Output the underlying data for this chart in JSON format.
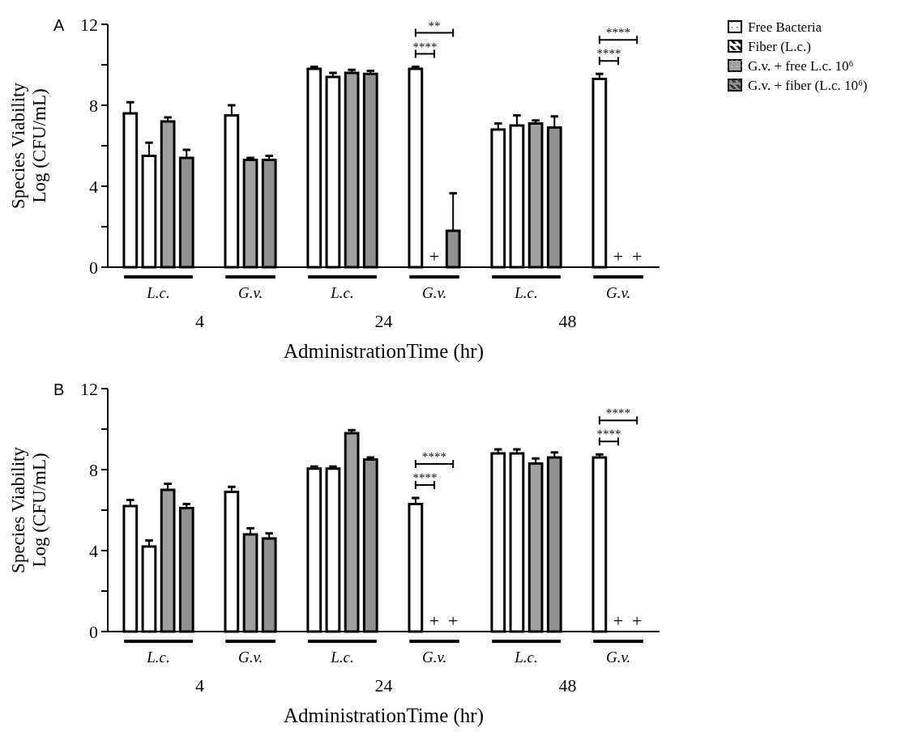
{
  "chart_data": [
    {
      "type": "bar",
      "title": "A",
      "xlabel": "AdministrationTime (hr)",
      "ylabel": "Species Viability\nLog (CFU/mL)",
      "categories": [
        "L.c.",
        "G.v.",
        "L.c.",
        "G.v.",
        "L.c.",
        "G.v."
      ],
      "ylim": [
        0,
        12
      ],
      "yticks": [
        0,
        {
          "value": 2,
          "label": null
        },
        4,
        {
          "value": 6,
          "label": null
        },
        8,
        {
          "value": 10,
          "label": null
        },
        12
      ],
      "legend": "top right",
      "annotations": [
        "4",
        "24",
        "48",
        "****",
        "**",
        "****",
        "****"
      ],
      "series": [
        {
          "name": "Free Bacteria",
          "color": "#ffffff",
          "values": [
            7.6,
            7.5,
            9.8,
            9.8,
            6.8,
            9.3
          ],
          "errors": [
            0.55,
            0.5,
            0.1,
            0.1,
            0.3,
            0.25
          ]
        },
        {
          "name": "Fiber (L.c.)",
          "color": "#ffffff",
          "values": [
            5.5,
            null,
            9.4,
            null,
            7.0,
            null
          ],
          "errors": [
            0.65,
            null,
            0.2,
            null,
            0.5,
            null
          ]
        },
        {
          "name": "G.v. + free L.c. 10⁶",
          "color": "#a0a0a0",
          "values": [
            7.2,
            5.3,
            9.6,
            null,
            7.1,
            null
          ],
          "errors": [
            0.2,
            0.1,
            0.15,
            null,
            0.15,
            null
          ],
          "value_labels": [
            null,
            null,
            null,
            "+",
            null,
            "+"
          ]
        },
        {
          "name": "G.v. + fiber (L.c. 10⁶)",
          "color": "#909090",
          "values": [
            5.4,
            5.3,
            9.55,
            1.8,
            6.9,
            null
          ],
          "errors": [
            0.4,
            0.2,
            0.15,
            1.85,
            0.55,
            null
          ],
          "value_labels": [
            null,
            null,
            null,
            null,
            null,
            "+"
          ]
        }
      ]
    },
    {
      "type": "bar",
      "title": "B",
      "xlabel": "AdministrationTime (hr)",
      "ylabel": "Species Viability\nLog (CFU/mL)",
      "categories": [
        "L.c.",
        "G.v.",
        "L.c.",
        "G.v.",
        "L.c.",
        "G.v."
      ],
      "ylim": [
        0,
        12
      ],
      "yticks": [
        0,
        {
          "value": 2,
          "label": null
        },
        4,
        {
          "value": 6,
          "label": null
        },
        8,
        {
          "value": 10,
          "label": null
        },
        12
      ],
      "annotations": [
        "4",
        "24",
        "48",
        "****",
        "****",
        "****",
        "****"
      ],
      "series": [
        {
          "color": "#ffffff",
          "values": [
            6.2,
            6.9,
            8.05,
            6.3,
            8.8,
            8.6
          ],
          "errors": [
            0.3,
            0.25,
            0.1,
            0.3,
            0.2,
            0.15
          ]
        },
        {
          "color": "#ffffff",
          "values": [
            4.2,
            null,
            8.05,
            null,
            8.8,
            null
          ],
          "errors": [
            0.3,
            null,
            0.1,
            null,
            0.2,
            null
          ]
        },
        {
          "color": "#a0a0a0",
          "values": [
            7.0,
            4.8,
            9.8,
            null,
            8.3,
            null
          ],
          "errors": [
            0.3,
            0.3,
            0.15,
            null,
            0.25,
            null
          ],
          "value_labels": [
            null,
            null,
            null,
            "+",
            null,
            "+"
          ]
        },
        {
          "color": "#909090",
          "values": [
            6.1,
            4.6,
            8.5,
            null,
            8.6,
            null
          ],
          "errors": [
            0.2,
            0.25,
            0.1,
            null,
            0.25,
            null
          ],
          "value_labels": [
            null,
            null,
            null,
            "+",
            null,
            "+"
          ]
        }
      ]
    }
  ]
}
